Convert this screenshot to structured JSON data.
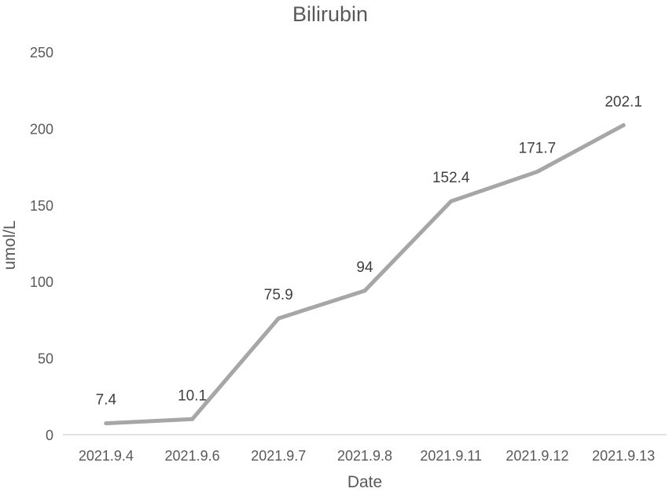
{
  "chart_data": {
    "type": "line",
    "title": "Bilirubin",
    "xlabel": "Date",
    "ylabel": "umol/L",
    "categories": [
      "2021.9.4",
      "2021.9.6",
      "2021.9.7",
      "2021.9.8",
      "2021.9.11",
      "2021.9.12",
      "2021.9.13"
    ],
    "values": [
      7.4,
      10.1,
      75.9,
      94,
      152.4,
      171.7,
      202.1
    ],
    "data_labels": [
      "7.4",
      "10.1",
      "75.9",
      "94",
      "152.4",
      "171.7",
      "202.1"
    ],
    "ylim": [
      0,
      250
    ],
    "yticks": [
      "0",
      "50",
      "100",
      "150",
      "200",
      "250"
    ],
    "grid": false,
    "legend": "none",
    "line_color": "#a6a6a6",
    "axis_color": "#d9d9d9"
  }
}
